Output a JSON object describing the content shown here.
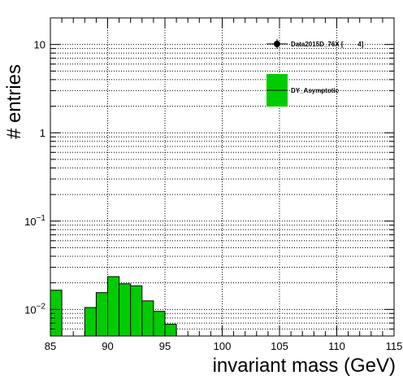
{
  "chart_data": {
    "type": "histogram",
    "xlabel": "invariant mass (GeV)",
    "ylabel": "# entries",
    "xlim": [
      85,
      115
    ],
    "ylim": [
      0.005,
      20
    ],
    "y_scale": "log",
    "grid": true,
    "x_ticks": [
      {
        "value": 85,
        "label": "85"
      },
      {
        "value": 90,
        "label": "90"
      },
      {
        "value": 95,
        "label": "95"
      },
      {
        "value": 100,
        "label": "100"
      },
      {
        "value": 105,
        "label": "105"
      },
      {
        "value": 110,
        "label": "110"
      },
      {
        "value": 115,
        "label": "115"
      }
    ],
    "y_ticks": [
      {
        "value": 0.01,
        "base": "10",
        "exp": "−2"
      },
      {
        "value": 0.1,
        "base": "10",
        "exp": "−1"
      },
      {
        "value": 1,
        "base": "1",
        "exp": ""
      },
      {
        "value": 10,
        "base": "10",
        "exp": ""
      }
    ],
    "bin_width": 1,
    "series": [
      {
        "name": "DY_Asymptotic",
        "color": "#00cc00",
        "bins": [
          {
            "x": 85,
            "y": 0.0165
          },
          {
            "x": 86,
            "y": 0
          },
          {
            "x": 87,
            "y": 0
          },
          {
            "x": 88,
            "y": 0.0105
          },
          {
            "x": 89,
            "y": 0.0155
          },
          {
            "x": 90,
            "y": 0.0235
          },
          {
            "x": 91,
            "y": 0.0195
          },
          {
            "x": 92,
            "y": 0.0185
          },
          {
            "x": 93,
            "y": 0.0125
          },
          {
            "x": 94,
            "y": 0.0095
          },
          {
            "x": 95,
            "y": 0.0068
          }
        ]
      }
    ],
    "legend": [
      {
        "label": "Data2015D_76X [        4]",
        "marker": "point-errorbar",
        "color": "#000000"
      },
      {
        "label": "DY_Asymptotic",
        "marker": "box-line",
        "color": "#00cc00"
      }
    ],
    "legend_position": "top-right"
  }
}
